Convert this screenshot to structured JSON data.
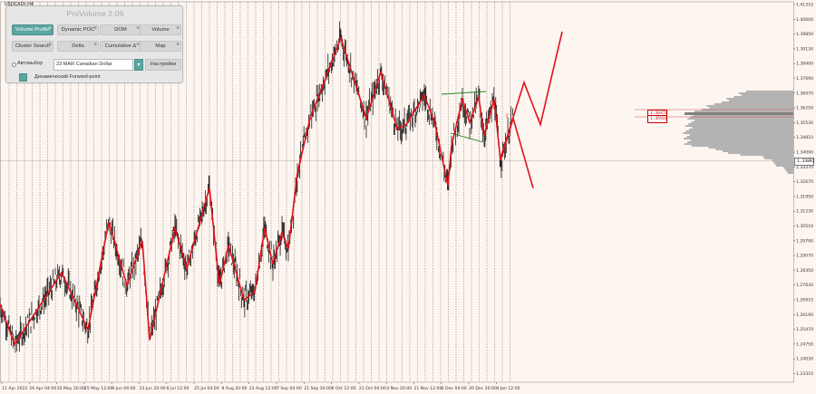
{
  "symbol": "USDCADr,H4",
  "panel": {
    "title": "ProVolume 2.06",
    "buttons": [
      {
        "label": "Volume Profile",
        "active": true
      },
      {
        "label": "Dynamic POC",
        "active": false
      },
      {
        "label": "DOM",
        "active": false
      },
      {
        "label": "Volume",
        "active": false
      },
      {
        "label": "Cluster Search",
        "active": false
      },
      {
        "label": "Delta",
        "active": false
      },
      {
        "label": "Cumulative Δ",
        "active": false
      },
      {
        "label": "Map",
        "active": false
      }
    ],
    "gear_glyph": "⚙",
    "auto_label": "Автовыбор",
    "instrument_value": "23 MAR Canadian Dollar",
    "dropdown_glyph": "▾",
    "settings_label": "Настройки",
    "forward_label": "Динамический Forward-point"
  },
  "current_price": "1.33892",
  "profile_levels": [
    "1.36470",
    "1.35920"
  ],
  "colors": {
    "background": "#fdf5f0",
    "candle": "#000000",
    "zigzag": "#e0121b",
    "channel": "#1a7f1a",
    "profile": "#b3b3b3",
    "profile_dark": "#7f7f7f",
    "accent": "#5aa6a1"
  },
  "chart_data": {
    "type": "line",
    "y_ticks": [
      "1.41310",
      "1.40600",
      "1.39850",
      "1.39130",
      "1.38400",
      "1.37690",
      "1.36970",
      "1.36250",
      "1.35530",
      "1.34810",
      "1.34090",
      "1.33370",
      "1.32670",
      "1.31950",
      "1.31230",
      "1.30510",
      "1.29790",
      "1.29070",
      "1.28350",
      "1.27630",
      "1.26910",
      "1.26190",
      "1.25470",
      "1.24750",
      "1.24030",
      "1.23310"
    ],
    "x_ticks": [
      "11 Apr 2022",
      "26 Apr 04:00",
      "10 May 20:00",
      "25 May 12:00",
      "9 Jun 04:00",
      "23 Jun 20:00",
      "8 Jul 12:00",
      "25 Jul 04:00",
      "8 Aug 20:00",
      "23 Aug 12:00",
      "7 Sep 04:00",
      "21 Sep 20:00",
      "6 Oct 12:00",
      "21 Oct 04:00",
      "4 Nov 20:00",
      "21 Nov 12:00",
      "6 Dec 04:00",
      "20 Dec 20:00",
      "4 Jan 12:00"
    ],
    "ylim": [
      1.2331,
      1.4131
    ],
    "zigzag_prices": [
      1.27,
      1.251,
      1.285,
      1.258,
      1.309,
      1.279,
      1.3,
      1.253,
      1.306,
      1.287,
      1.325,
      1.279,
      1.298,
      1.286,
      1.272,
      1.276,
      1.306,
      1.289,
      1.304,
      1.296,
      1.332,
      1.358,
      1.396,
      1.358,
      1.38,
      1.353,
      1.355,
      1.369,
      1.355,
      1.326,
      1.345,
      1.367,
      1.356,
      1.368,
      1.35,
      1.367,
      1.338,
      1.358
    ],
    "forecast_up": [
      1.339,
      1.375,
      1.355,
      1.399
    ],
    "forecast_down": [
      1.358,
      1.325
    ]
  }
}
